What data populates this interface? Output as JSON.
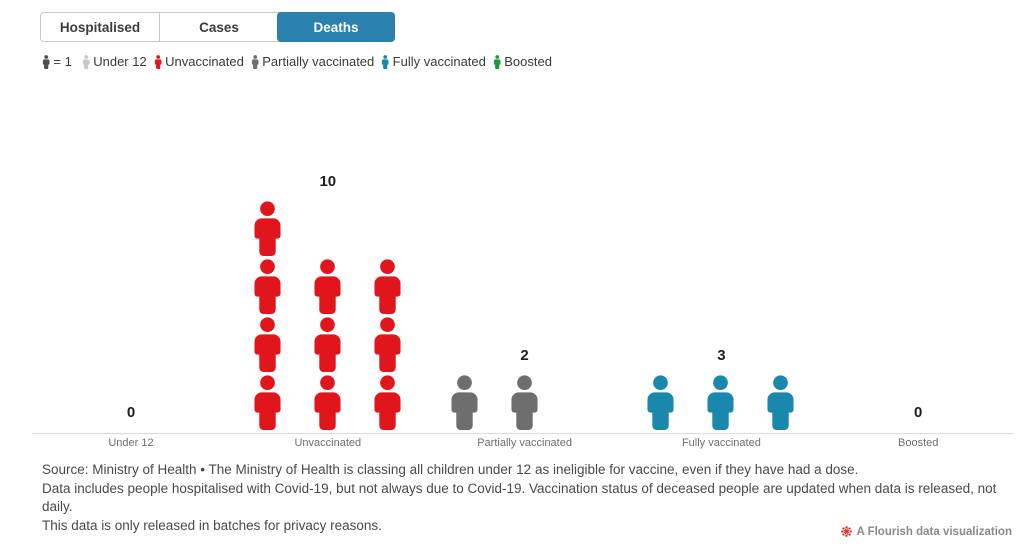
{
  "tabs": [
    {
      "label": "Hospitalised",
      "active": false
    },
    {
      "label": "Cases",
      "active": false
    },
    {
      "label": "Deaths",
      "active": true
    }
  ],
  "tab_active_color": "#2a81ad",
  "legend": {
    "unit_label": "= 1",
    "unit_color": "#4d4d4d",
    "items": [
      {
        "label": "Under 12",
        "color": "#c9c9c9"
      },
      {
        "label": "Unvaccinated",
        "color": "#e0161c"
      },
      {
        "label": "Partially vaccinated",
        "color": "#6e6e6e"
      },
      {
        "label": "Fully vaccinated",
        "color": "#1a87ad"
      },
      {
        "label": "Boosted",
        "color": "#219a3d"
      }
    ]
  },
  "chart_data": {
    "type": "pictogram",
    "unit_value": 1,
    "categories": [
      "Under 12",
      "Unvaccinated",
      "Partially vaccinated",
      "Fully vaccinated",
      "Boosted"
    ],
    "values": [
      0,
      10,
      2,
      3,
      0
    ],
    "value_labels": [
      "0",
      "10",
      "2",
      "3",
      "0"
    ],
    "columns": [
      [],
      [
        4,
        3,
        3
      ],
      [
        1,
        1
      ],
      [
        1,
        1,
        1
      ],
      []
    ],
    "colors": [
      "#c9c9c9",
      "#e0161c",
      "#6e6e6e",
      "#1a87ad",
      "#219a3d"
    ],
    "title": "",
    "xlabel": "",
    "ylabel": "",
    "legend_position": "top",
    "grid": false
  },
  "footer": {
    "lines": [
      "Source: Ministry of Health • The Ministry of Health is classing all children under 12 as ineligible for vaccine, even if they have had a dose.",
      "Data includes people hospitalised with Covid-19, but not always due to Covid-19. Vaccination status of deceased people are updated when data is released, not daily.",
      "This data is only released in batches for privacy reasons."
    ]
  },
  "attribution": {
    "label": "A Flourish data visualization",
    "icon_color": "#d0312d"
  }
}
